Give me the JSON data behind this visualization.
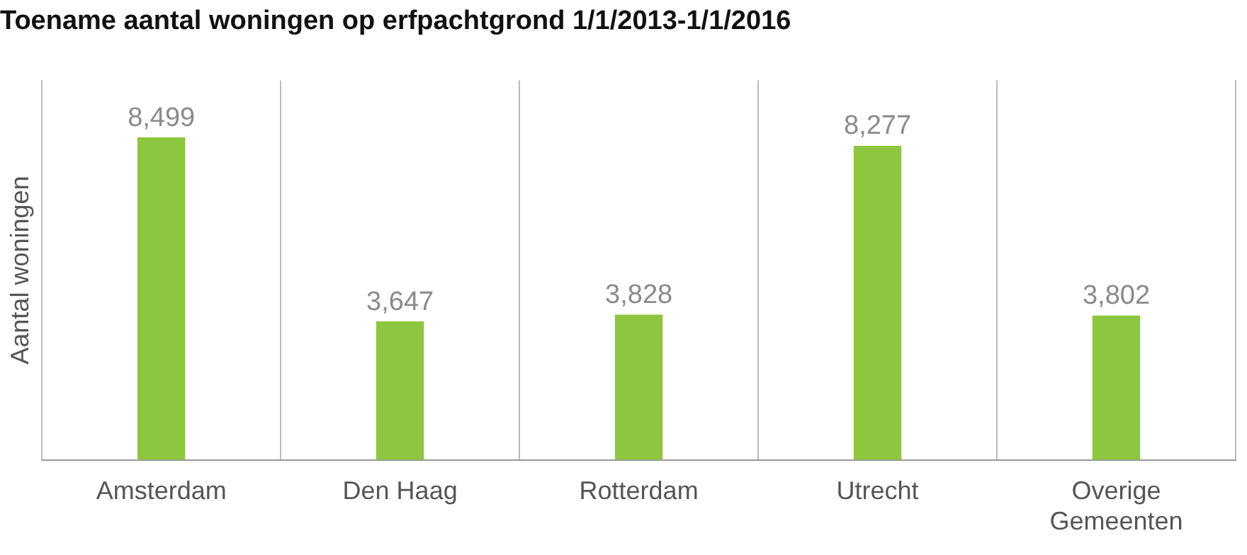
{
  "chart_data": {
    "type": "bar",
    "title": "Toename aantal woningen op erfpachtgrond 1/1/2013-1/1/2016",
    "ylabel": "Aantal woningen",
    "categories": [
      "Amsterdam",
      "Den Haag",
      "Rotterdam",
      "Utrecht",
      "Overige Gemeenten"
    ],
    "values": [
      8499,
      3647,
      3828,
      8277,
      3802
    ],
    "value_labels": [
      "8,499",
      "3,647",
      "3,828",
      "8,277",
      "3,802"
    ],
    "color": "#8dc63f",
    "grid": "x",
    "legend": false
  }
}
